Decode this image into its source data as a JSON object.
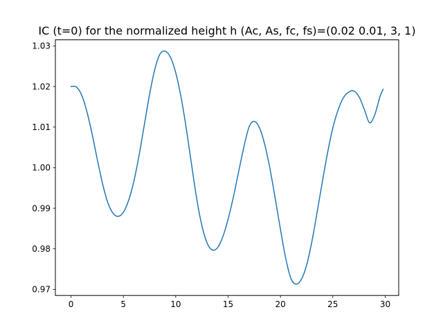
{
  "chart_data": {
    "type": "line",
    "title": "IC (t=0) for the normalized height h (Ac, As, fc, fs)=(0.02 0.01, 3, 1)",
    "xlabel": "",
    "ylabel": "",
    "xlim": [
      -1.49,
      31.29
    ],
    "ylim": [
      0.9685,
      1.0315
    ],
    "grid": false,
    "x_ticks": [
      {
        "value": 0,
        "label": "0"
      },
      {
        "value": 5,
        "label": "5"
      },
      {
        "value": 10,
        "label": "10"
      },
      {
        "value": 15,
        "label": "15"
      },
      {
        "value": 20,
        "label": "20"
      },
      {
        "value": 25,
        "label": "25"
      },
      {
        "value": 30,
        "label": "30"
      }
    ],
    "y_ticks": [
      {
        "value": 0.97,
        "label": "0.97"
      },
      {
        "value": 0.98,
        "label": "0.98"
      },
      {
        "value": 0.99,
        "label": "0.99"
      },
      {
        "value": 1.0,
        "label": "1.00"
      },
      {
        "value": 1.01,
        "label": "1.01"
      },
      {
        "value": 1.02,
        "label": "1.02"
      },
      {
        "value": 1.03,
        "label": "1.03"
      }
    ],
    "series": [
      {
        "color": "#1f77b4",
        "x": [
          0,
          0.5,
          1,
          1.5,
          2,
          2.5,
          3,
          3.5,
          4,
          4.5,
          5,
          5.5,
          6,
          6.5,
          7,
          7.5,
          8,
          8.5,
          9,
          9.5,
          10,
          10.5,
          11,
          11.5,
          12,
          12.5,
          13,
          13.5,
          14,
          14.5,
          15,
          15.5,
          16,
          16.5,
          17,
          17.5,
          18,
          18.5,
          19,
          19.5,
          20,
          20.5,
          21,
          21.5,
          22,
          22.5,
          23,
          23.5,
          24,
          24.5,
          25,
          25.5,
          26,
          26.5,
          27,
          27.5,
          28,
          28.5,
          29,
          29.5,
          29.8
        ],
        "y": [
          1.02,
          1.0199,
          1.018,
          1.014,
          1.0085,
          1.0022,
          0.9962,
          0.9915,
          0.9888,
          0.988,
          0.989,
          0.9919,
          0.9966,
          1.003,
          1.0105,
          1.018,
          1.0242,
          1.028,
          1.0287,
          1.0272,
          1.0234,
          1.0175,
          1.0098,
          1.001,
          0.9924,
          0.9857,
          0.9814,
          0.9797,
          0.9803,
          0.983,
          0.9873,
          0.9927,
          0.9989,
          1.005,
          1.01,
          1.0114,
          1.0098,
          1.0057,
          0.9997,
          0.9924,
          0.9848,
          0.9777,
          0.9727,
          0.9713,
          0.9725,
          0.976,
          0.9818,
          0.989,
          0.9965,
          1.0037,
          1.0098,
          1.0142,
          1.0172,
          1.0186,
          1.0189,
          1.0175,
          1.0144,
          1.0111,
          1.013,
          1.0175,
          1.0193
        ]
      }
    ]
  }
}
